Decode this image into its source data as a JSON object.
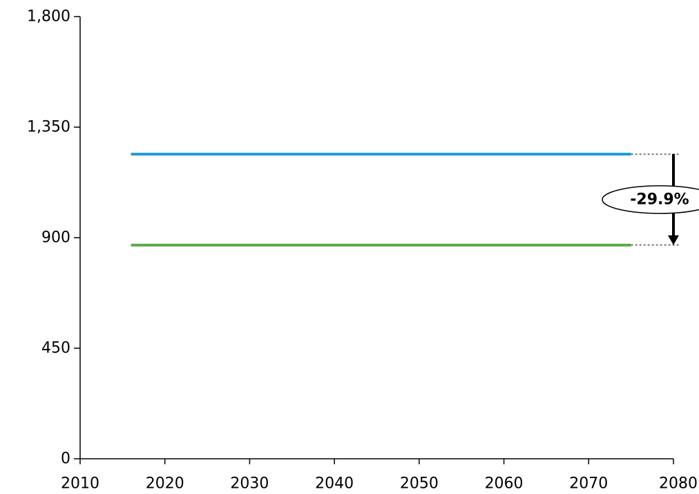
{
  "chart_data": {
    "type": "line",
    "title": "",
    "xlabel": "",
    "ylabel": "",
    "xlim": [
      2010,
      2080
    ],
    "ylim": [
      0,
      1800
    ],
    "x_ticks": [
      2010,
      2020,
      2030,
      2040,
      2050,
      2060,
      2070,
      2080
    ],
    "y_ticks": [
      0,
      450,
      900,
      1350,
      1800
    ],
    "x_tick_labels": [
      "2010",
      "2020",
      "2030",
      "2040",
      "2050",
      "2060",
      "2070",
      "2080"
    ],
    "y_tick_labels": [
      "0",
      "450",
      "900",
      "1,350",
      "1,800"
    ],
    "grid": false,
    "legend": "none",
    "series": [
      {
        "x": [
          2016,
          2075
        ],
        "values": [
          1240,
          1240
        ],
        "color": "#1a9bd7"
      },
      {
        "x": [
          2016,
          2075
        ],
        "values": [
          870,
          870
        ],
        "color": "#5aa845"
      }
    ],
    "annotation": {
      "label": "-29.9%",
      "x": 2080,
      "from_value": 1240,
      "to_value": 870,
      "direction": "down"
    }
  }
}
